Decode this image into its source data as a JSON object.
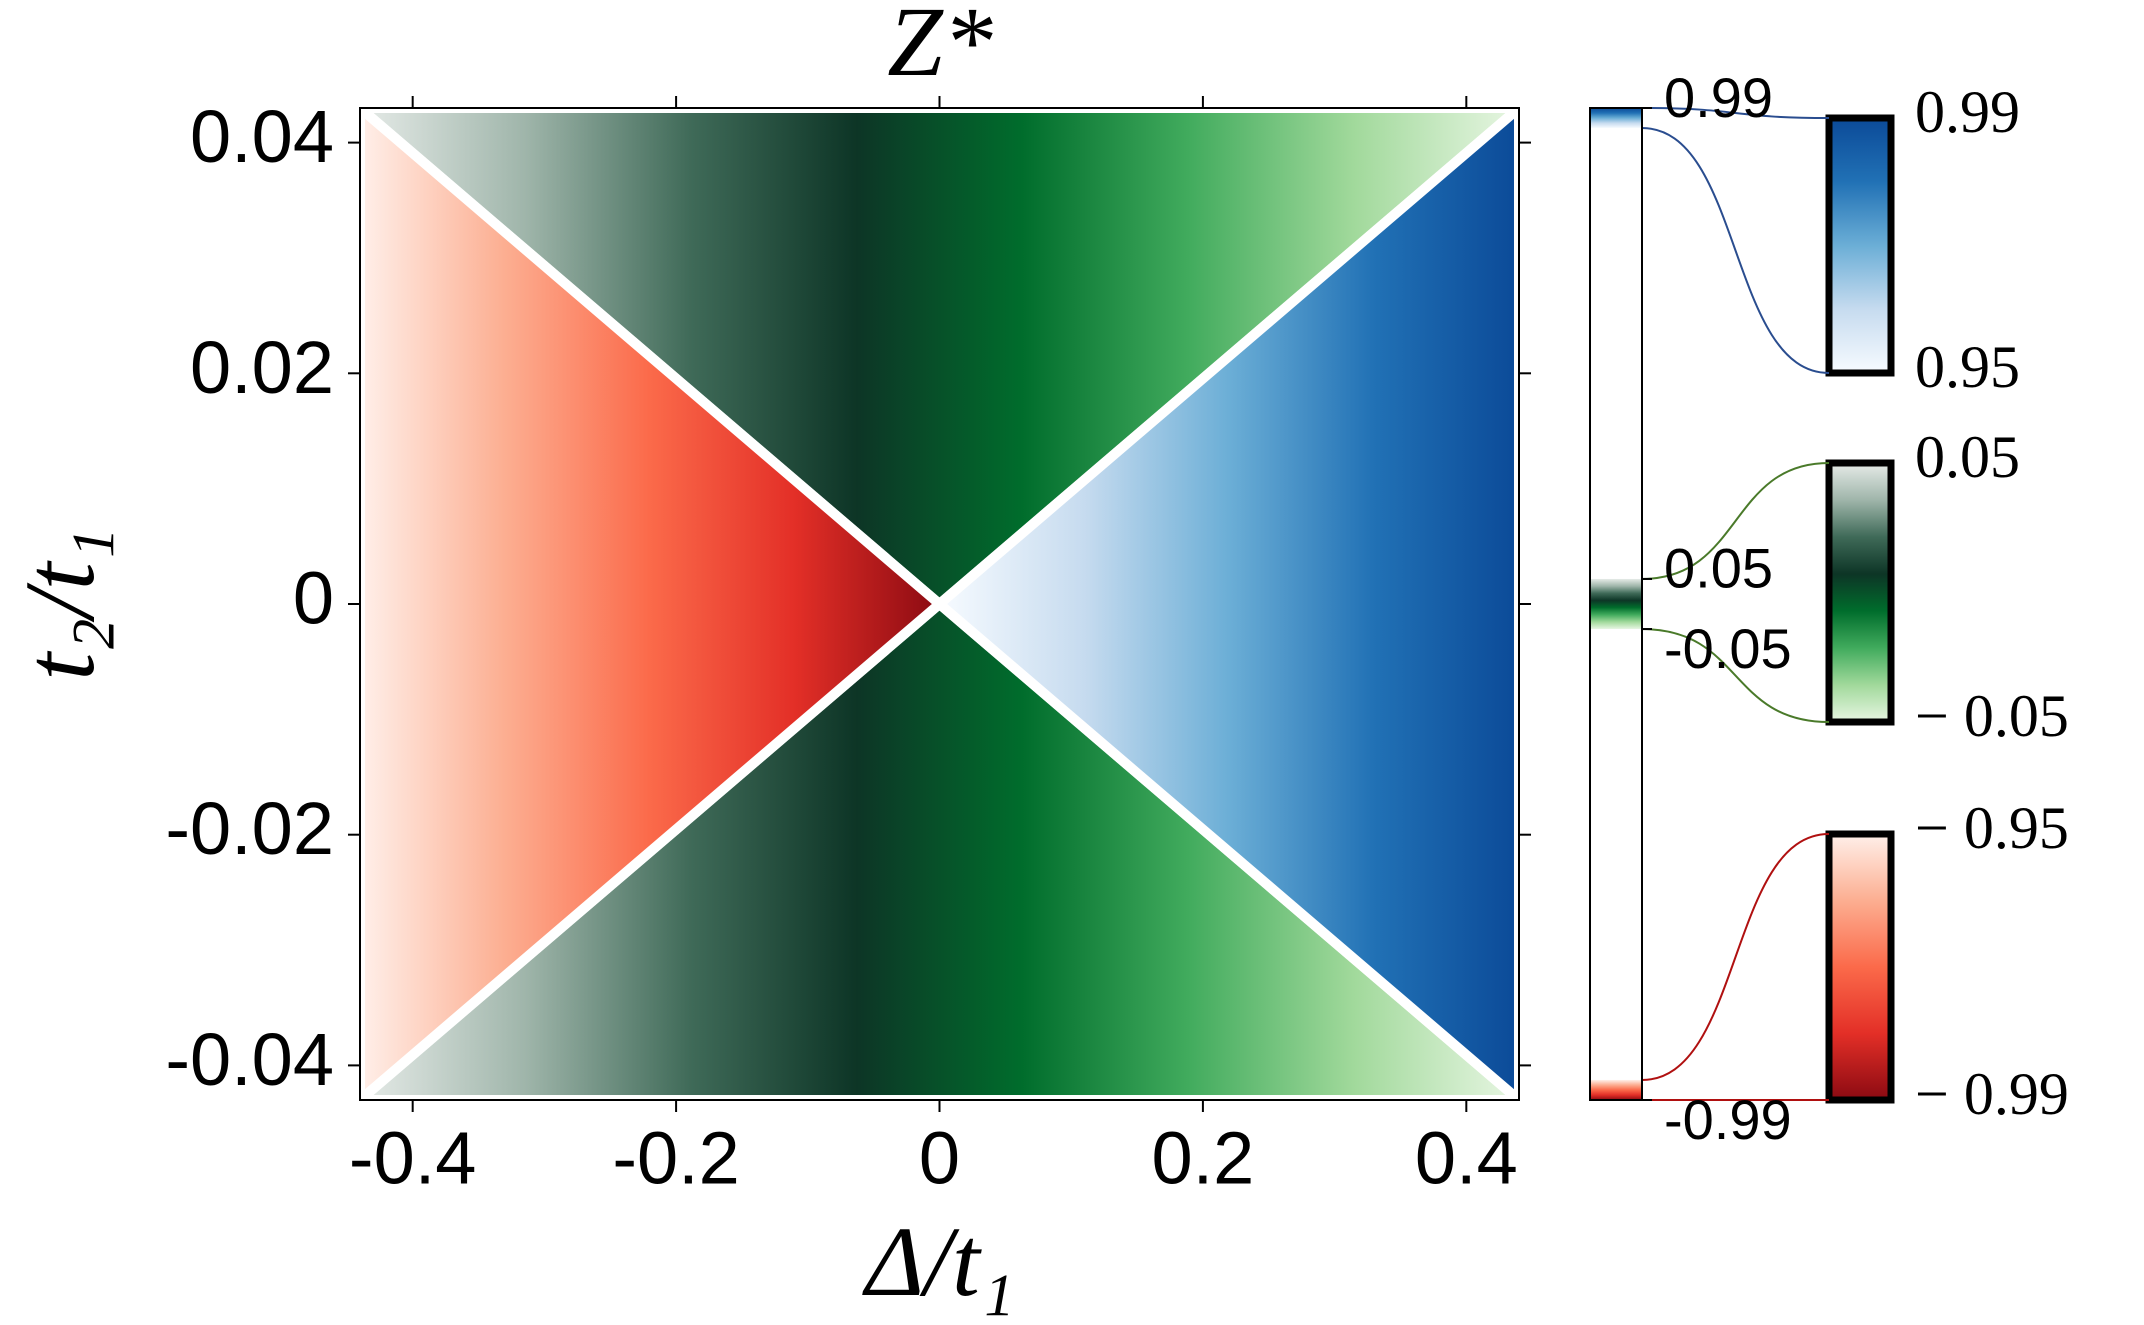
{
  "chart_data": {
    "type": "heatmap",
    "title": "Z*",
    "xlabel": "Δ/t₁",
    "ylabel": "t₂/t₁",
    "xlim": [
      -0.44,
      0.44
    ],
    "ylim": [
      -0.043,
      0.043
    ],
    "xticks": [
      -0.4,
      -0.2,
      0,
      0.2,
      0.4
    ],
    "yticks": [
      -0.04,
      -0.02,
      0,
      0.02,
      0.04
    ],
    "regions": [
      {
        "colorbar": 2,
        "polygon": [
          [
            -0.44,
            0.043
          ],
          [
            0.44,
            0.043
          ],
          [
            0,
            0
          ]
        ],
        "gradient_x": [
          -0.44,
          0.44
        ]
      },
      {
        "colorbar": 2,
        "polygon": [
          [
            -0.44,
            -0.043
          ],
          [
            0.44,
            -0.043
          ],
          [
            0,
            0
          ]
        ],
        "gradient_x": [
          -0.44,
          0.44
        ]
      },
      {
        "colorbar": 3,
        "polygon": [
          [
            -0.44,
            0.043
          ],
          [
            0,
            0
          ],
          [
            -0.44,
            -0.043
          ]
        ],
        "gradient_x": [
          -0.44,
          0
        ]
      },
      {
        "colorbar": 1,
        "polygon": [
          [
            0.44,
            0.043
          ],
          [
            0,
            0
          ],
          [
            0.44,
            -0.043
          ]
        ],
        "gradient_x": [
          0.44,
          0
        ]
      }
    ],
    "colorbars": [
      {
        "clim": [
          -0.99,
          0.99
        ],
        "ticks": [
          0.99,
          0.05,
          -0.05,
          -0.99
        ]
      },
      {
        "clim": [
          0.95,
          0.99
        ],
        "colors": [
          "#f7fbff",
          "#c6dbef",
          "#6baed6",
          "#2171b5",
          "#0b4a98"
        ],
        "ticks": [
          0.99,
          0.95
        ]
      },
      {
        "clim": [
          -0.05,
          0.05
        ],
        "colors": [
          "#e8f6e3",
          "#a1d99b",
          "#41ab5d",
          "#006d2c",
          "#0d3526",
          "#3f6a58",
          "#9fb5aa",
          "#e6ebe8"
        ],
        "ticks": [
          0.05,
          {
            "value": -0.05,
            "label": "− 0.05"
          }
        ]
      },
      {
        "clim": [
          -0.99,
          -0.95
        ],
        "colors": [
          "#8b0a12",
          "#e32f27",
          "#fb6a4a",
          "#fcae91",
          "#fff0ea"
        ],
        "ticks": [
          {
            "value": -0.95,
            "label": "− 0.95"
          },
          {
            "value": -0.99,
            "label": "− 0.99"
          }
        ]
      }
    ]
  }
}
